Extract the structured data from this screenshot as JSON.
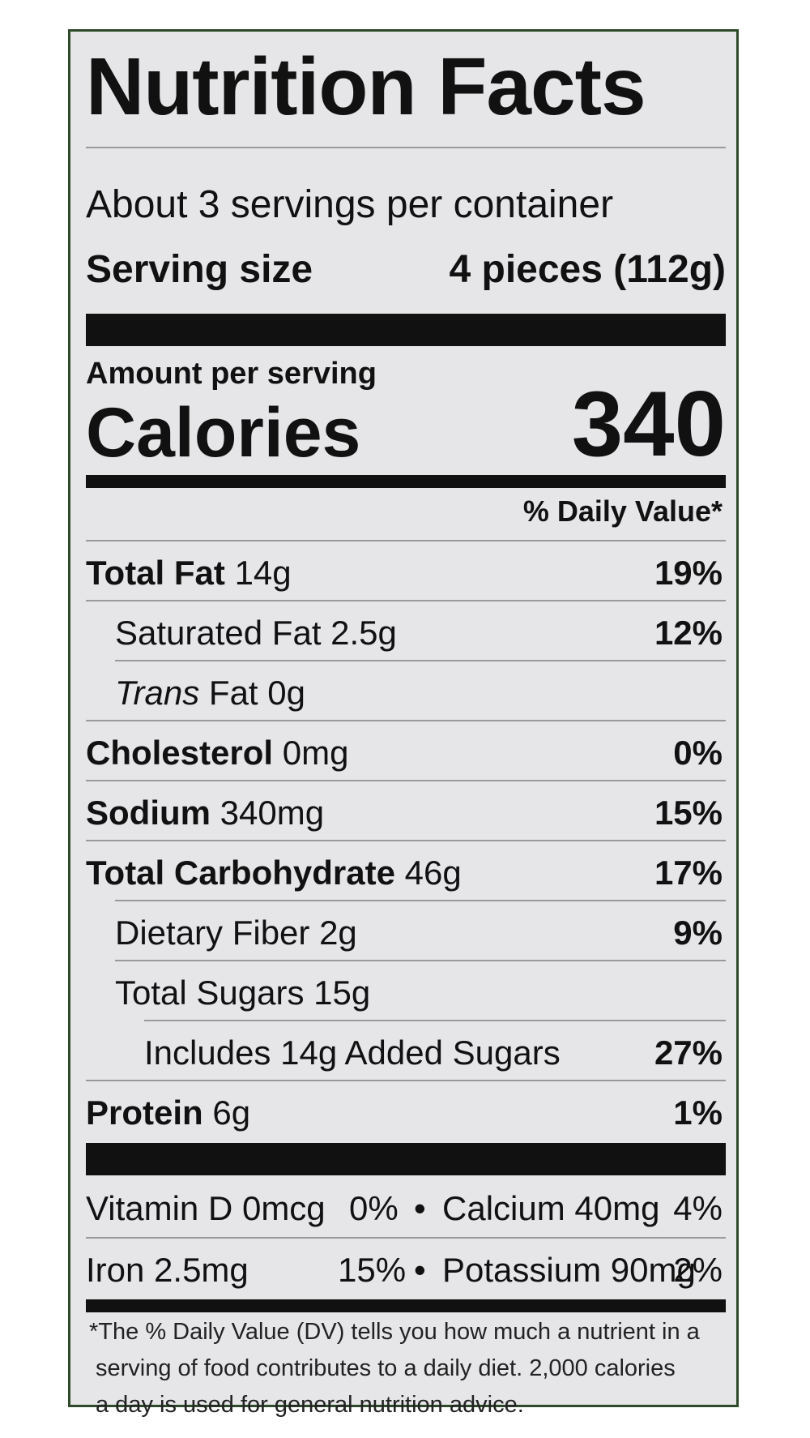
{
  "label": {
    "title": "Nutrition Facts",
    "servings_per_container": "About 3 servings per container",
    "serving_size_label": "Serving size",
    "serving_size_value": "4 pieces (112g)",
    "amount_per_serving": "Amount per serving",
    "calories_label": "Calories",
    "calories_value": "340",
    "daily_value_header": "% Daily Value*"
  },
  "nutrients": {
    "total_fat": {
      "name": "Total Fat",
      "amount": "14g",
      "dv": "19%"
    },
    "saturated_fat": {
      "name": "Saturated Fat",
      "amount": "2.5g",
      "dv": "12%"
    },
    "trans_fat": {
      "name_italic": "Trans",
      "name_rest": "Fat",
      "amount": "0g"
    },
    "cholesterol": {
      "name": "Cholesterol",
      "amount": "0mg",
      "dv": "0%"
    },
    "sodium": {
      "name": "Sodium",
      "amount": "340mg",
      "dv": "15%"
    },
    "total_carbohydrate": {
      "name": "Total Carbohydrate",
      "amount": "46g",
      "dv": "17%"
    },
    "dietary_fiber": {
      "name": "Dietary Fiber",
      "amount": "2g",
      "dv": "9%"
    },
    "total_sugars": {
      "name": "Total Sugars",
      "amount": "15g"
    },
    "added_sugars": {
      "text": "Includes 14g Added Sugars",
      "dv": "27%"
    },
    "protein": {
      "name": "Protein",
      "amount": "6g",
      "dv": "1%"
    }
  },
  "vitamins": {
    "row1": {
      "left_text": "Vitamin D 0mcg",
      "left_dv": "0%",
      "bullet": "•",
      "right_text": "Calcium 40mg",
      "right_dv": "4%"
    },
    "row2": {
      "left_text": "Iron 2.5mg",
      "left_dv": "15%",
      "bullet": "•",
      "right_text": "Potassium 90mg",
      "right_dv": "2%"
    }
  },
  "footnote": {
    "line1": "*The % Daily Value (DV) tells you how much a nutrient in a",
    "line2": "serving of food contributes to a daily diet. 2,000 calories",
    "line3": "a day is used for general nutrition advice."
  },
  "colors": {
    "background": "#e6e5e8",
    "border": "#2f4a2a",
    "text": "#111111",
    "rule": "#9a9a9a"
  }
}
